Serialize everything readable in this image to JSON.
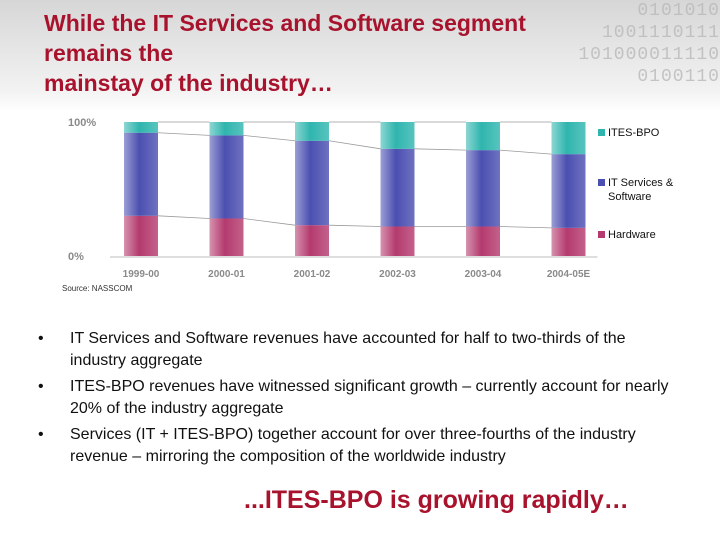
{
  "slide": {
    "title_lines": [
      "While the IT Services and Software segment",
      "remains the",
      "mainstay of the industry…"
    ],
    "source": "Source: NASSCOM",
    "bullets": [
      "IT Services and Software revenues have accounted for half to two-thirds of the industry aggregate",
      "ITES-BPO revenues have witnessed significant growth – currently account for nearly 20% of the industry aggregate",
      "Services (IT + ITES-BPO) together account for over three-fourths of the industry revenue – mirroring the composition of the worldwide industry"
    ],
    "bullet_marker": "•",
    "conclusion": "...ITES-BPO is growing rapidly…",
    "decoration_binary": [
      "0101010",
      "1001110111",
      "101000011110",
      "0100110"
    ]
  },
  "chart_data": {
    "type": "bar",
    "stacked": true,
    "percent_stacked": true,
    "categories": [
      "1999-00",
      "2000-01",
      "2001-02",
      "2002-03",
      "2003-04",
      "2004-05E"
    ],
    "y_tick_labels": [
      "100%",
      "0%"
    ],
    "ylim": [
      0,
      100
    ],
    "series": [
      {
        "name": "Hardware",
        "color": "#b43a6e",
        "values": [
          30,
          28,
          23,
          22,
          22,
          21
        ]
      },
      {
        "name": "IT Services & Software",
        "color": "#4b4fb0",
        "values": [
          62,
          62,
          63,
          58,
          57,
          55
        ]
      },
      {
        "name": "ITES-BPO",
        "color": "#2fb5ae",
        "values": [
          8,
          10,
          14,
          20,
          21,
          24
        ]
      }
    ],
    "legend_order": [
      "ITES-BPO",
      "IT Services & Software",
      "Hardware"
    ],
    "legend_position": "right",
    "series_connector_lines": true
  }
}
